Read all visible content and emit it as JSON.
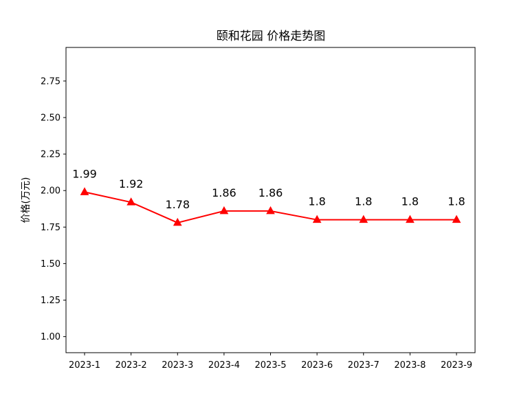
{
  "chart_data": {
    "type": "line",
    "title": "颐和花园 价格走势图",
    "xlabel": "",
    "ylabel": "价格(万元)",
    "categories": [
      "2023-1",
      "2023-2",
      "2023-3",
      "2023-4",
      "2023-5",
      "2023-6",
      "2023-7",
      "2023-8",
      "2023-9"
    ],
    "series": [
      {
        "values": [
          1.99,
          1.92,
          1.78,
          1.86,
          1.86,
          1.8,
          1.8,
          1.8,
          1.8
        ],
        "color": "#ff0000",
        "marker": "triangle"
      }
    ],
    "data_labels": [
      "1.99",
      "1.92",
      "1.78",
      "1.86",
      "1.86",
      "1.8",
      "1.8",
      "1.8",
      "1.8"
    ],
    "ylim": [
      0.89,
      2.98
    ],
    "yticks": [
      1.0,
      1.25,
      1.5,
      1.75,
      2.0,
      2.25,
      2.5,
      2.75
    ],
    "ytick_labels": [
      "1.00",
      "1.25",
      "1.50",
      "1.75",
      "2.00",
      "2.25",
      "2.50",
      "2.75"
    ],
    "grid": false,
    "legend": "none"
  }
}
